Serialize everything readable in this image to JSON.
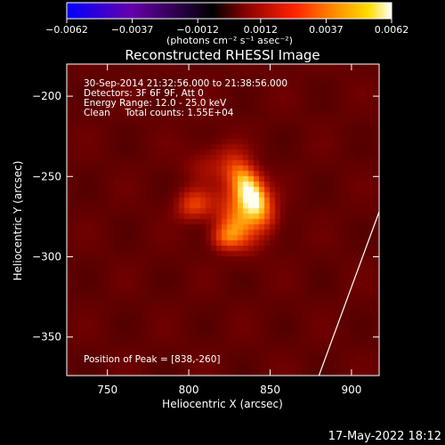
{
  "chart_data": {
    "type": "heatmap",
    "title": "Reconstructed RHESSI Image",
    "xlabel": "Heliocentric X (arcsec)",
    "ylabel": "Heliocentric Y (arcsec)",
    "xlim": [
      725,
      917
    ],
    "ylim": [
      -374,
      -180
    ],
    "x_ticks": [
      750,
      800,
      850,
      900
    ],
    "y_ticks": [
      -200,
      -250,
      -300,
      -350
    ],
    "colorbar": {
      "min": -0.0062,
      "max": 0.0062,
      "tick_values": [
        -0.0062,
        -0.0037,
        -0.0012,
        0.0012,
        0.0037,
        0.0062
      ],
      "tick_labels": [
        "-0.0062",
        "-0.0037",
        "-0.0012",
        "0.0012",
        "0.0037",
        "0.0062"
      ],
      "units_label": "(photons cm⁻² s⁻¹ asec⁻²)",
      "colormap": [
        "#0000ff",
        "#6600aa",
        "#000000",
        "#880000",
        "#ff2200",
        "#ff8800",
        "#ffdd00",
        "#ffffff"
      ]
    },
    "annotations": [
      "30-Sep-2014 21:32:56.000 to 21:38:56.000",
      "Detectors: 3F 6F 9F, Att 0",
      "Energy Range: 12.0 - 25.0 keV",
      "Clean     Total counts: 1.55E+04"
    ],
    "peak_label": "Position of Peak = [838,-260]",
    "sources": [
      {
        "x": 838,
        "y": -260,
        "sx": 7,
        "sy": 15,
        "rot": 28,
        "amp": 1.0
      },
      {
        "x": 830,
        "y": -277,
        "sx": 9,
        "sy": 13,
        "rot": 20,
        "amp": 0.55
      },
      {
        "x": 803,
        "y": -268,
        "sx": 8,
        "sy": 7,
        "rot": 0,
        "amp": 0.45
      },
      {
        "x": 822,
        "y": -288,
        "sx": 7,
        "sy": 6,
        "rot": 0,
        "amp": 0.4
      },
      {
        "x": 812,
        "y": -242,
        "sx": 11,
        "sy": 9,
        "rot": 0,
        "amp": 0.2
      }
    ],
    "limb_line": [
      [
        880,
        -374
      ],
      [
        917,
        -272
      ]
    ],
    "timestamp": "17-May-2022 18:12"
  }
}
